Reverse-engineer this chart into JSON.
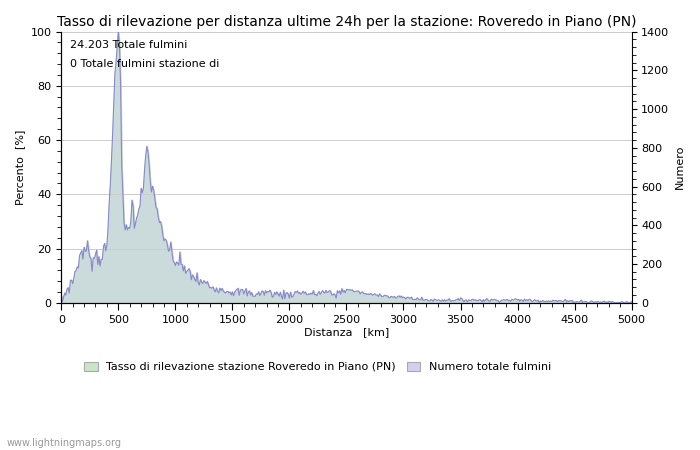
{
  "title": "Tasso di rilevazione per distanza ultime 24h per la stazione: Roveredo in Piano (PN)",
  "xlabel": "Distanza   [km]",
  "ylabel_left": "Percento  [%]",
  "ylabel_right": "Numero",
  "annotation_line1": "24.203 Totale fulmini",
  "annotation_line2": "0 Totale fulmini stazione di",
  "legend_label1": "Tasso di rilevazione stazione Roveredo in Piano (PN)",
  "legend_label2": "Numero totale fulmini",
  "watermark": "www.lightningmaps.org",
  "xlim": [
    0,
    5000
  ],
  "ylim_left": [
    0,
    100
  ],
  "ylim_right": [
    0,
    1400
  ],
  "xticks": [
    0,
    500,
    1000,
    1500,
    2000,
    2500,
    3000,
    3500,
    4000,
    4500,
    5000
  ],
  "yticks_left": [
    0,
    20,
    40,
    60,
    80,
    100
  ],
  "yticks_right": [
    0,
    200,
    400,
    600,
    800,
    1000,
    1200,
    1400
  ],
  "fill_color_green": "#c8e6c8",
  "fill_color_blue": "#d0d0f0",
  "line_color": "#8888cc",
  "bg_color": "#ffffff",
  "grid_color": "#cccccc",
  "title_fontsize": 10,
  "label_fontsize": 8,
  "tick_fontsize": 8
}
